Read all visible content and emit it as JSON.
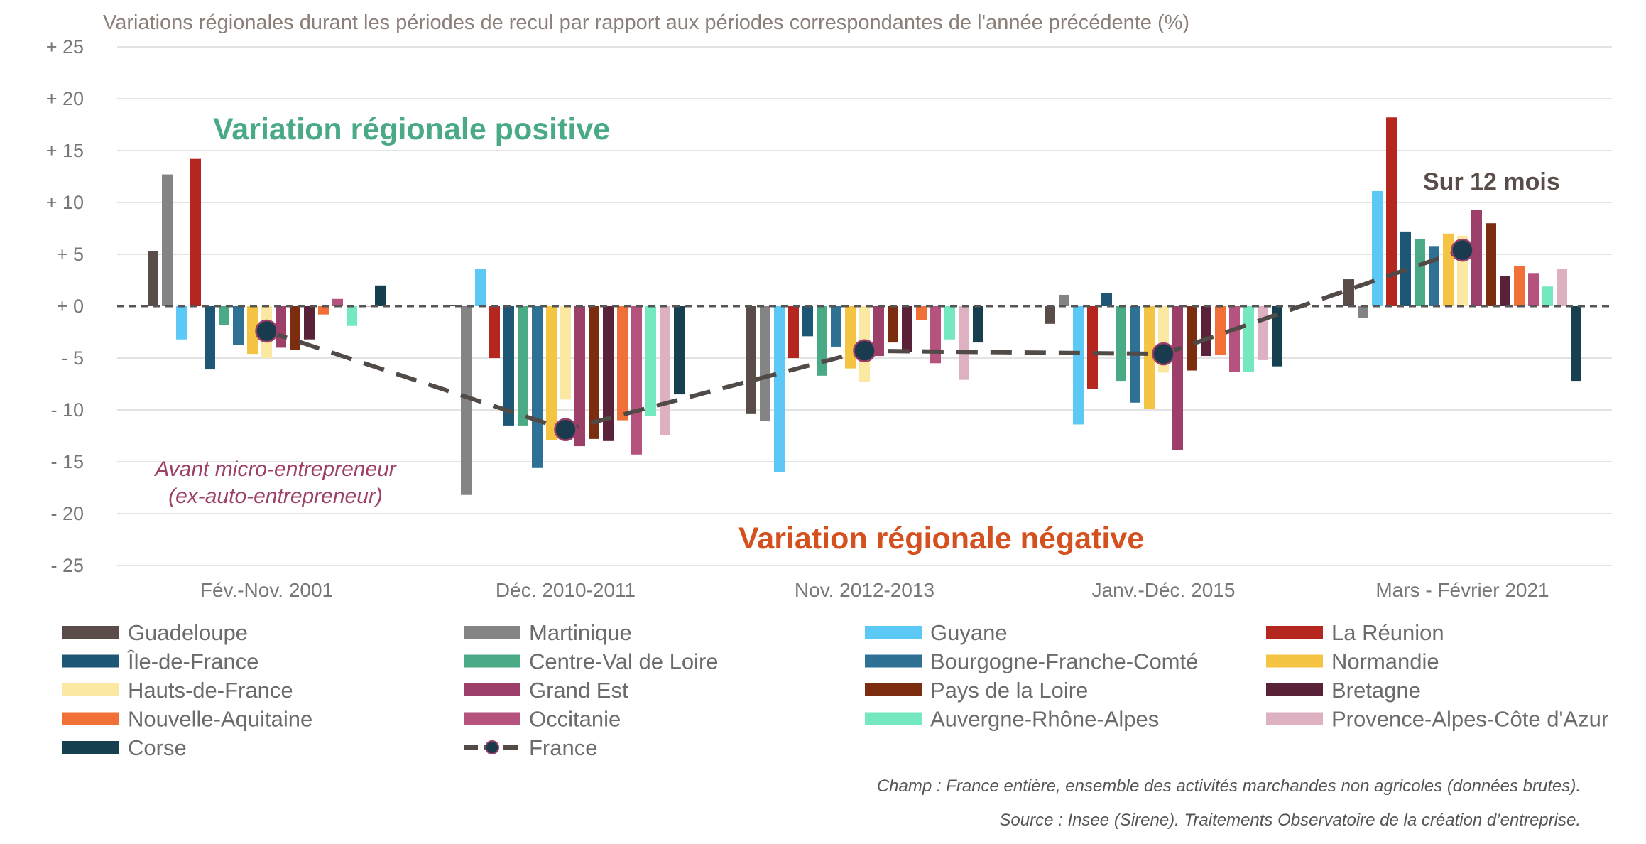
{
  "chart_data": {
    "type": "bar",
    "title": "Variations régionales durant les périodes de recul par rapport aux périodes correspondantes de l'année précédente (%)",
    "categories": [
      "Fév.-Nov. 2001",
      "Déc. 2010-2011",
      "Nov. 2012-2013",
      "Janv.-Déc. 2015",
      "Mars - Février 2021"
    ],
    "ylim": [
      -25,
      25
    ],
    "yticks": [
      25,
      20,
      15,
      10,
      5,
      0,
      -5,
      -10,
      -15,
      -20,
      -25
    ],
    "ytick_labels": [
      "+ 25",
      "+ 20",
      "+ 15",
      "+ 10",
      "+ 5",
      "+ 0",
      "- 5",
      "- 10",
      "- 15",
      "- 20",
      "- 25"
    ],
    "grid": true,
    "legend_position": "bottom",
    "series": [
      {
        "name": "Guadeloupe",
        "color": "#5a4d49",
        "values": [
          5.3,
          0.1,
          -10.4,
          -1.7,
          2.6
        ]
      },
      {
        "name": "Martinique",
        "color": "#848484",
        "values": [
          12.7,
          -18.2,
          -11.1,
          1.1,
          -1.1
        ]
      },
      {
        "name": "Guyane",
        "color": "#5bc8f5",
        "values": [
          -3.2,
          3.6,
          -16.0,
          -11.4,
          11.1
        ]
      },
      {
        "name": "La Réunion",
        "color": "#b5261e",
        "values": [
          14.2,
          -5.0,
          -5.0,
          -8.0,
          18.2
        ]
      },
      {
        "name": "Île-de-France",
        "color": "#1d5775",
        "values": [
          -6.1,
          -11.5,
          -2.9,
          1.3,
          7.2
        ]
      },
      {
        "name": "Centre-Val de Loire",
        "color": "#4aaa86",
        "values": [
          -1.8,
          -11.5,
          -6.7,
          -7.2,
          6.5
        ]
      },
      {
        "name": "Bourgogne-Franche-Comté",
        "color": "#2e7195",
        "values": [
          -3.7,
          -15.6,
          -3.9,
          -9.3,
          5.8
        ]
      },
      {
        "name": "Normandie",
        "color": "#f6c443",
        "values": [
          -4.6,
          -12.9,
          -6.0,
          -9.9,
          7.0
        ]
      },
      {
        "name": "Hauts-de-France",
        "color": "#fbe9a3",
        "values": [
          -5.0,
          -9.0,
          -7.3,
          -6.4,
          6.8
        ]
      },
      {
        "name": "Grand Est",
        "color": "#9c3f69",
        "values": [
          -4.0,
          -13.5,
          -4.8,
          -13.9,
          9.3
        ]
      },
      {
        "name": "Pays de la Loire",
        "color": "#7c2d10",
        "values": [
          -4.2,
          -12.8,
          -3.5,
          -6.2,
          8.0
        ]
      },
      {
        "name": "Bretagne",
        "color": "#5a2238",
        "values": [
          -3.2,
          -13.0,
          -4.4,
          -4.8,
          2.9
        ]
      },
      {
        "name": "Nouvelle-Aquitaine",
        "color": "#f07038",
        "values": [
          -0.8,
          -11.0,
          -1.3,
          -4.7,
          3.9
        ]
      },
      {
        "name": "Occitanie",
        "color": "#b5527e",
        "values": [
          0.7,
          -14.3,
          -5.5,
          -6.3,
          3.2
        ]
      },
      {
        "name": "Auvergne-Rhône-Alpes",
        "color": "#74e8bf",
        "values": [
          -1.9,
          -10.6,
          -3.2,
          -6.3,
          1.9
        ]
      },
      {
        "name": "Provence-Alpes-Côte d'Azur",
        "color": "#ddb1c2",
        "values": [
          0.0,
          -12.4,
          -7.1,
          -5.2,
          3.6
        ]
      },
      {
        "name": "Corse",
        "color": "#163f4f",
        "values": [
          2.0,
          -8.5,
          -3.5,
          -5.8,
          -7.2
        ]
      }
    ],
    "line_series": {
      "name": "France",
      "color": "#514a46",
      "marker_color": "#1a3a4d",
      "values": [
        -2.4,
        -11.9,
        -4.3,
        -4.6,
        5.4
      ]
    },
    "annotations": {
      "positive": "Variation régionale positive",
      "negative": "Variation régionale négative",
      "twelve_months": "Sur 12 mois",
      "micro_line1": "Avant micro-entrepreneur",
      "micro_line2": "(ex-auto-entrepreneur)"
    },
    "annotation_colors": {
      "positive": "#4aaa86",
      "negative": "#d4501e",
      "twelve_months": "#5a4d49",
      "micro": "#9c3f69"
    }
  },
  "footer": {
    "champ": "Champ : France entière, ensemble des activités marchandes non agricoles (données brutes).",
    "source": "Source : Insee (Sirene). Traitements Observatoire de la création d’entreprise."
  }
}
